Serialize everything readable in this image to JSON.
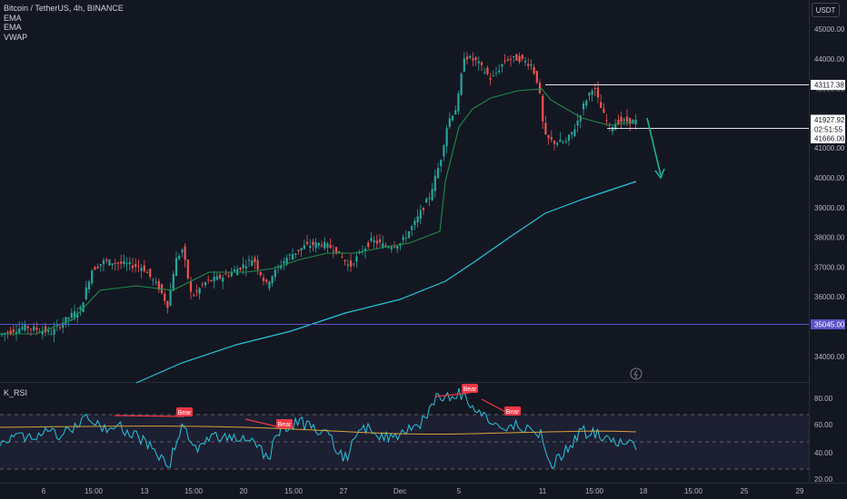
{
  "header": {
    "symbol_title": "Bitcoin / TetherUS, 4h, BINANCE",
    "indicators": [
      "EMA",
      "EMA",
      "VWAP"
    ],
    "currency": "USDT"
  },
  "rsi_panel": {
    "title": "K_RSI"
  },
  "colors": {
    "background": "#131722",
    "up": "#26a69a",
    "down": "#ef5350",
    "ema_slow": "#26c6da",
    "ema_fast": "#1e8c4a",
    "rsi_line": "#26c6da",
    "rsi_signal": "#d6a43a",
    "bear_label": "#f23645",
    "hline_support": "#5b54c6",
    "arrow": "#1eb39a"
  },
  "price_scale": {
    "ticks": [
      "45000.00",
      "44000.00",
      "43000.00",
      "42000.00",
      "41000.00",
      "40000.00",
      "39000.00",
      "38000.00",
      "37000.00",
      "36000.00",
      "35000.00",
      "34000.00"
    ],
    "markers": [
      {
        "label": "43117.38",
        "style": "white"
      },
      {
        "label": "41927.92",
        "style": "white"
      },
      {
        "label": "02:51:55",
        "style": "white"
      },
      {
        "label": "41666.00",
        "style": "white"
      },
      {
        "label": "35045.00",
        "style": "purple"
      }
    ]
  },
  "rsi_scale": {
    "ticks": [
      "80.00",
      "60.00",
      "40.00",
      "20.00"
    ]
  },
  "time_axis": {
    "labels": [
      "6",
      "15:00",
      "13",
      "15:00",
      "20",
      "15:00",
      "27",
      "Dec",
      "5",
      "11",
      "15:00",
      "18",
      "15:00",
      "25",
      "29"
    ]
  },
  "chart_data": {
    "type": "candlestick",
    "symbol": "Bitcoin / TetherUS",
    "interval": "4h",
    "exchange": "BINANCE",
    "ylim": [
      33500,
      45600
    ],
    "candles_approx_close": [
      {
        "x": "6",
        "close": 34700
      },
      {
        "x": "15:00",
        "close": 36400
      },
      {
        "x": "13",
        "close": 36900
      },
      {
        "x": "15:00",
        "close": 37200
      },
      {
        "x": "20",
        "close": 37100
      },
      {
        "x": "15:00",
        "close": 37600
      },
      {
        "x": "27",
        "close": 37400
      },
      {
        "x": "Dec",
        "close": 38500
      },
      {
        "x": "5",
        "close": 44000
      },
      {
        "x": "11",
        "close": 41300
      },
      {
        "x": "15:00",
        "close": 42300
      }
    ],
    "horizontal_levels": [
      43117.38,
      41666.0,
      35045.0
    ],
    "last_price": 41927.92,
    "countdown": "02:51:55",
    "rsi": {
      "name": "K_RSI",
      "ylim": [
        20,
        90
      ],
      "levels": [
        70,
        50,
        30
      ],
      "bear_labels": [
        "Bear",
        "Bear",
        "Bear",
        "Bear"
      ]
    }
  }
}
